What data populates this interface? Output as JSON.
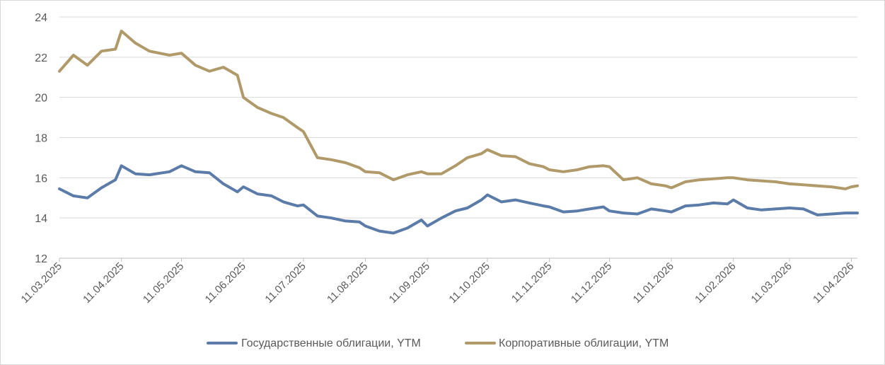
{
  "chart_data": {
    "type": "line",
    "title": "",
    "xlabel": "",
    "ylabel": "",
    "x_ticks": [
      "11.03.2025",
      "11.04.2025",
      "11.05.2025",
      "11.06.2025",
      "11.07.2025",
      "11.08.2025",
      "11.09.2025",
      "11.10.2025",
      "11.11.2025",
      "11.12.2025",
      "11.01.2026",
      "11.02.2026",
      "11.03.2026",
      "11.04.2026"
    ],
    "y_ticks": [
      12,
      14,
      16,
      18,
      20,
      22,
      24
    ],
    "ylim": [
      12,
      24
    ],
    "grid": true,
    "legend_position": "bottom",
    "x": [
      "11.03.2025",
      "18.03.2025",
      "25.03.2025",
      "01.04.2025",
      "08.04.2025",
      "11.04.2025",
      "18.04.2025",
      "25.04.2025",
      "05.05.2025",
      "11.05.2025",
      "18.05.2025",
      "25.05.2025",
      "01.06.2025",
      "08.06.2025",
      "11.06.2025",
      "18.06.2025",
      "25.06.2025",
      "01.07.2025",
      "08.07.2025",
      "11.07.2025",
      "18.07.2025",
      "25.07.2025",
      "01.08.2025",
      "08.08.2025",
      "11.08.2025",
      "18.08.2025",
      "25.08.2025",
      "01.09.2025",
      "08.09.2025",
      "11.09.2025",
      "18.09.2025",
      "25.09.2025",
      "01.10.2025",
      "08.10.2025",
      "11.10.2025",
      "18.10.2025",
      "25.10.2025",
      "01.11.2025",
      "08.11.2025",
      "11.11.2025",
      "18.11.2025",
      "25.11.2025",
      "01.12.2025",
      "08.12.2025",
      "11.12.2025",
      "18.12.2025",
      "25.12.2025",
      "01.01.2026",
      "08.01.2026",
      "11.01.2026",
      "18.01.2026",
      "25.01.2026",
      "01.02.2026",
      "08.02.2026",
      "11.02.2026",
      "18.02.2026",
      "25.02.2026",
      "04.03.2026",
      "11.03.2026",
      "18.03.2026",
      "25.03.2026",
      "01.04.2026",
      "08.04.2026",
      "11.04.2026",
      "14.04.2026"
    ],
    "series": [
      {
        "name": "Государственные облигации, YTM",
        "color": "#5b7ba8",
        "values": [
          15.45,
          15.1,
          15.0,
          15.5,
          15.9,
          16.6,
          16.2,
          16.15,
          16.3,
          16.6,
          16.3,
          16.25,
          15.7,
          15.3,
          15.55,
          15.2,
          15.1,
          14.8,
          14.6,
          14.65,
          14.1,
          14.0,
          13.85,
          13.8,
          13.6,
          13.35,
          13.25,
          13.5,
          13.9,
          13.6,
          14.0,
          14.35,
          14.5,
          14.9,
          15.15,
          14.8,
          14.9,
          14.75,
          14.6,
          14.55,
          14.3,
          14.35,
          14.45,
          14.55,
          14.35,
          14.25,
          14.2,
          14.45,
          14.35,
          14.3,
          14.6,
          14.65,
          14.75,
          14.7,
          14.9,
          14.5,
          14.4,
          14.45,
          14.5,
          14.45,
          14.15,
          14.2,
          14.25,
          14.25,
          14.25
        ]
      },
      {
        "name": "Корпоративные облигации, YTM",
        "color": "#b09a6a",
        "values": [
          21.3,
          22.1,
          21.6,
          22.3,
          22.4,
          23.3,
          22.7,
          22.3,
          22.1,
          22.2,
          21.6,
          21.3,
          21.5,
          21.1,
          20.0,
          19.5,
          19.2,
          19.0,
          18.5,
          18.3,
          17.0,
          16.9,
          16.75,
          16.5,
          16.3,
          16.25,
          15.9,
          16.15,
          16.3,
          16.2,
          16.2,
          16.6,
          17.0,
          17.2,
          17.4,
          17.1,
          17.05,
          16.7,
          16.55,
          16.4,
          16.3,
          16.4,
          16.55,
          16.6,
          16.55,
          15.9,
          16.0,
          15.7,
          15.6,
          15.5,
          15.8,
          15.9,
          15.95,
          16.0,
          16.0,
          15.9,
          15.85,
          15.8,
          15.7,
          15.65,
          15.6,
          15.55,
          15.45,
          15.55,
          15.6
        ]
      }
    ]
  }
}
